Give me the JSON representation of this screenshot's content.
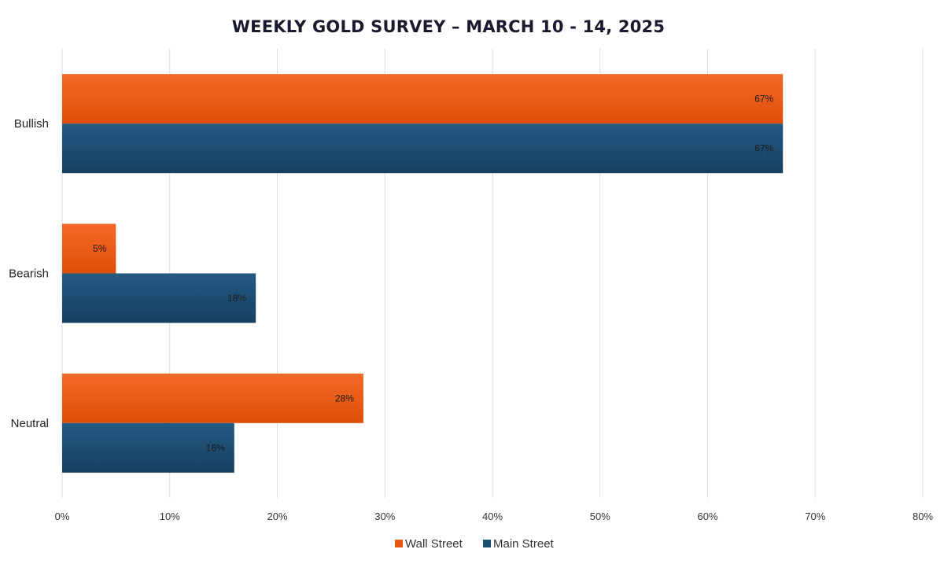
{
  "chart_data": {
    "type": "bar",
    "orientation": "horizontal",
    "title": "WEEKLY GOLD SURVEY – MARCH 10 - 14, 2025",
    "xlabel": "",
    "ylabel": "",
    "categories": [
      "Bullish",
      "Bearish",
      "Neutral"
    ],
    "series": [
      {
        "name": "Wall Street",
        "values": [
          67,
          5,
          28
        ],
        "labels": [
          "67%",
          "5%",
          "28%"
        ],
        "color": "#e8560f"
      },
      {
        "name": "Main Street",
        "values": [
          67,
          18,
          16
        ],
        "labels": [
          "67%",
          "18%",
          "16%"
        ],
        "color": "#1d4e74"
      }
    ],
    "xlim": [
      0,
      80
    ],
    "xticks": [
      0,
      10,
      20,
      30,
      40,
      50,
      60,
      70,
      80
    ],
    "xtick_labels": [
      "0%",
      "10%",
      "20%",
      "30%",
      "40%",
      "50%",
      "60%",
      "70%",
      "80%"
    ],
    "grid": "vertical",
    "legend": "bottom-center"
  }
}
